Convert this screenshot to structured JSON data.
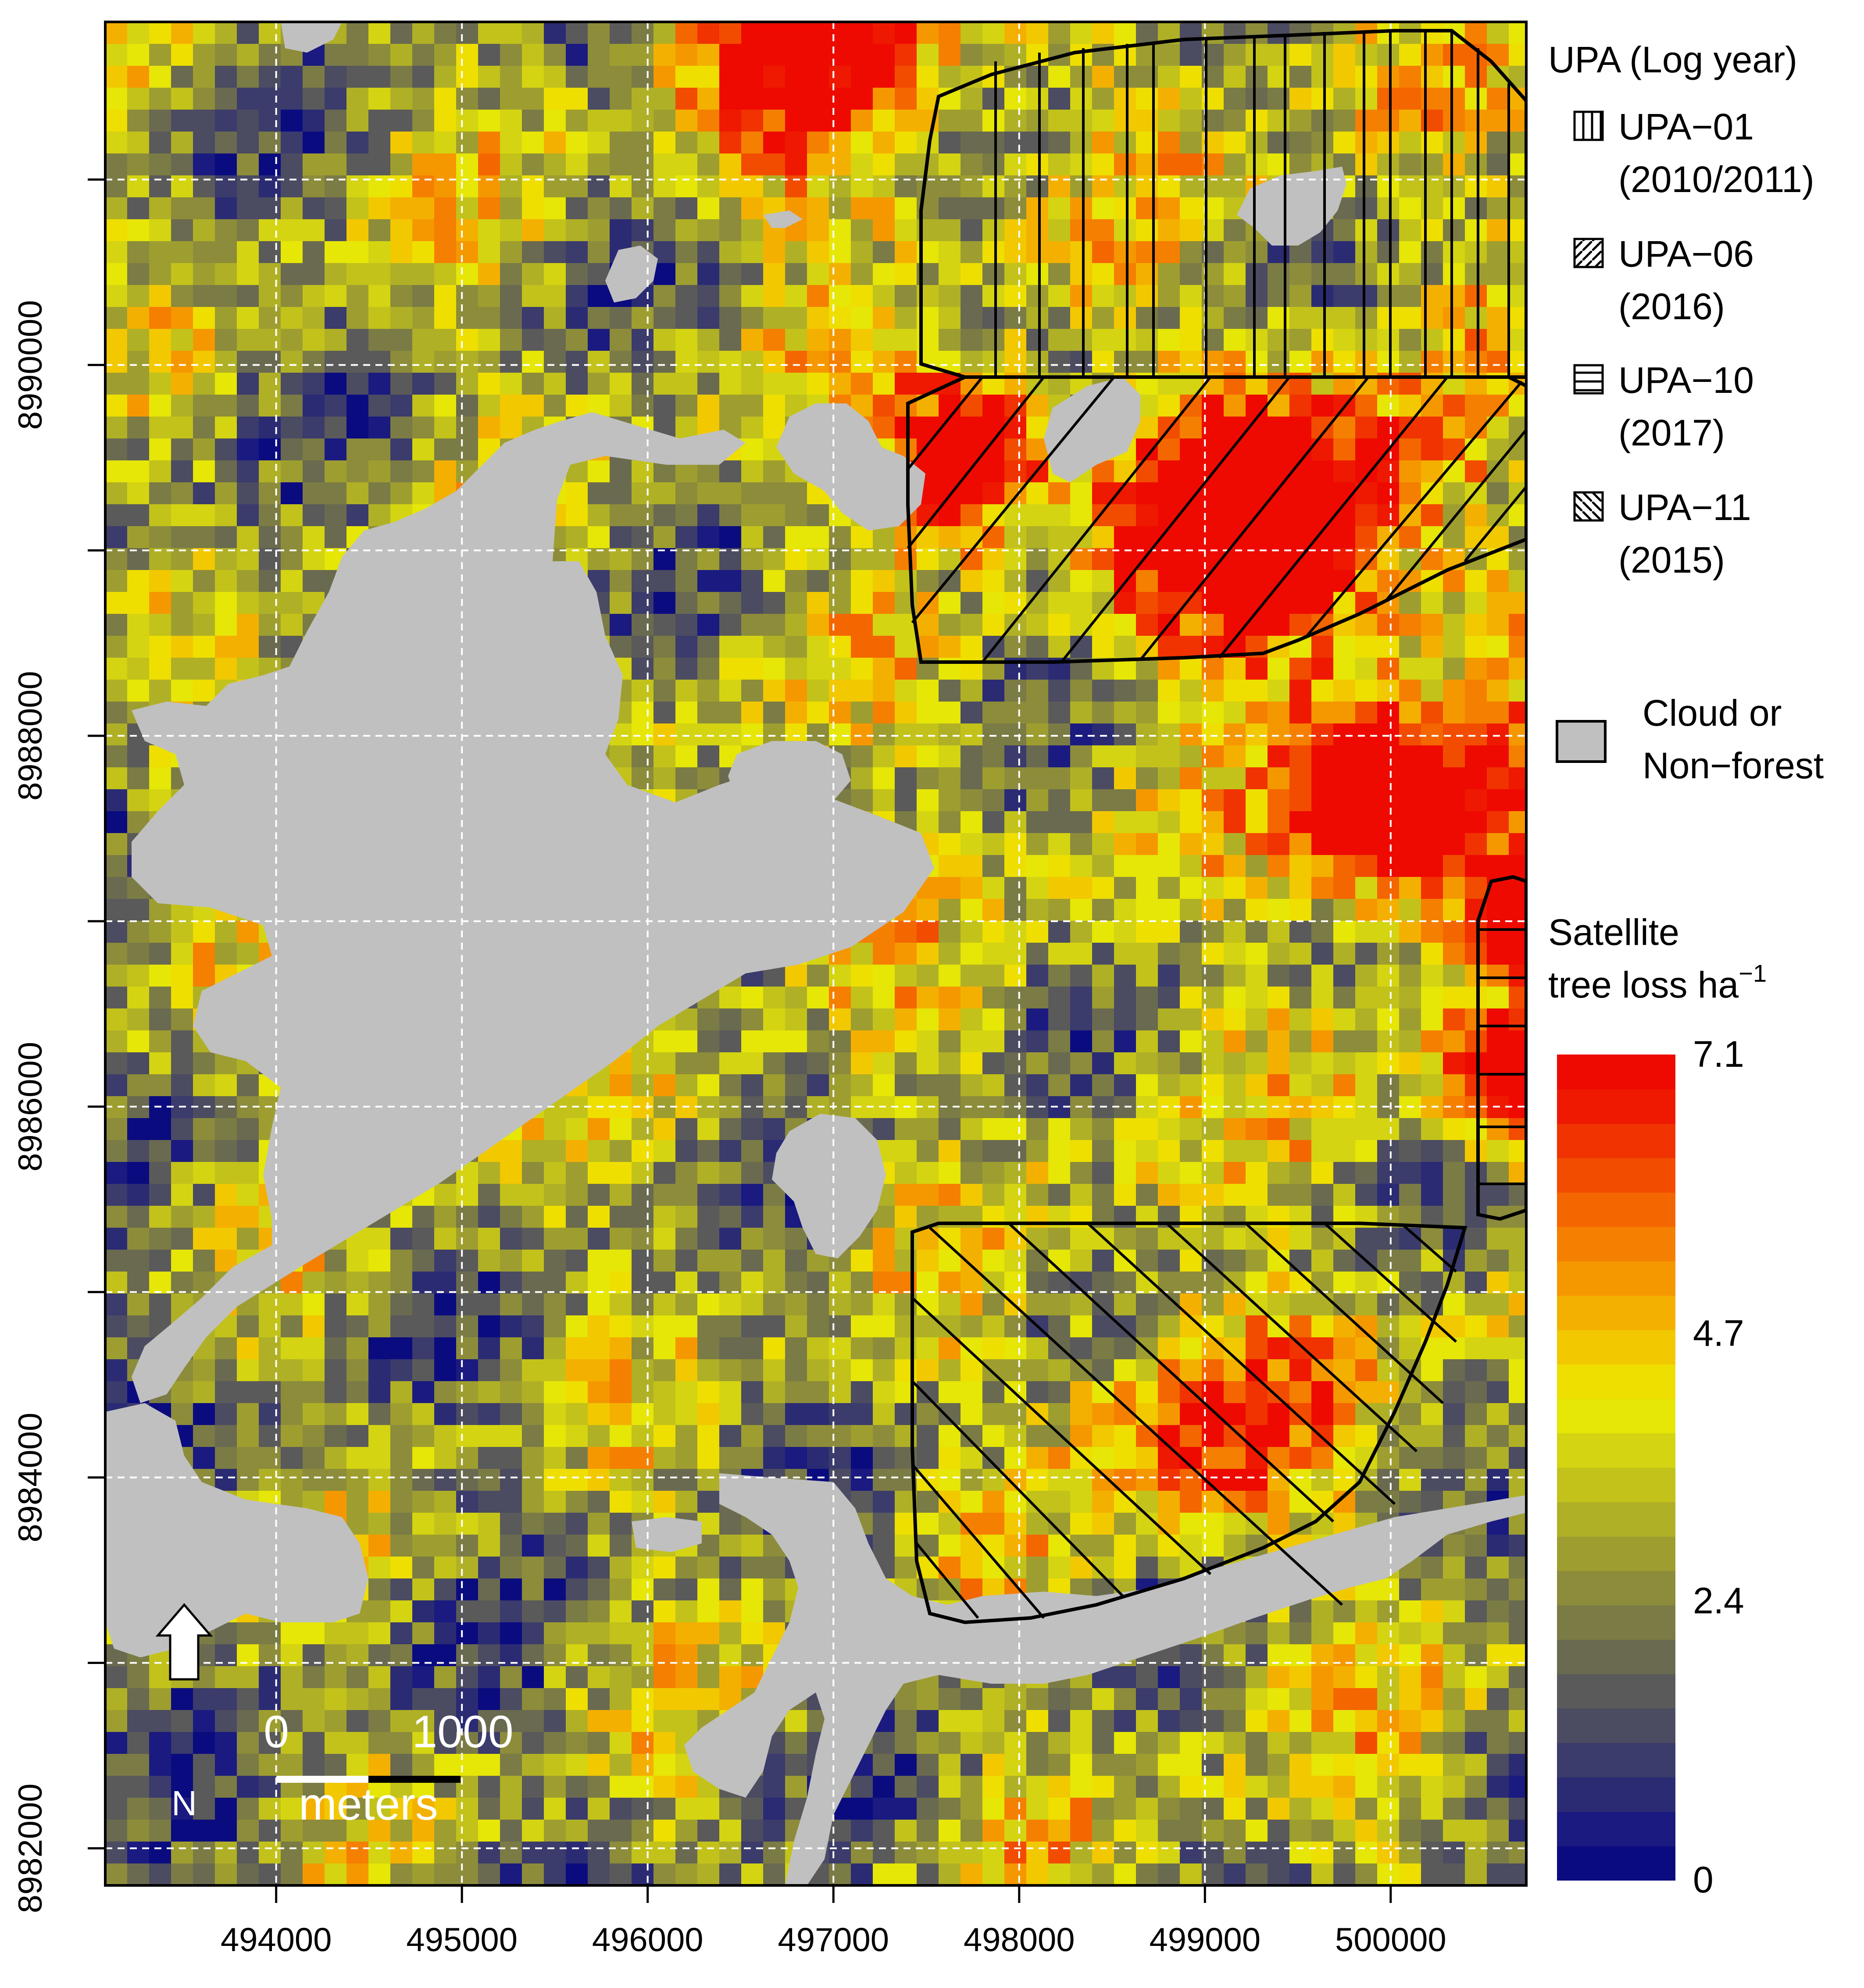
{
  "x_axis": {
    "ticks": [
      "494000",
      "495000",
      "496000",
      "497000",
      "498000",
      "499000",
      "500000"
    ],
    "range": [
      493080,
      500730
    ]
  },
  "y_axis": {
    "ticks": [
      "8982000",
      "8984000",
      "8986000",
      "8988000",
      "8990000"
    ],
    "range": [
      8981800,
      8991850
    ],
    "minor_ticks": [
      8982000,
      8983000,
      8984000,
      8985000,
      8986000,
      8987000,
      8988000,
      8989000,
      8990000,
      8991000
    ]
  },
  "legend": {
    "upa_title": "UPA (Log year)",
    "upa_items": [
      {
        "name": "UPA−01",
        "year": "(2010/2011)",
        "hatch": "vertical"
      },
      {
        "name": "UPA−06",
        "year": "(2016)",
        "hatch": "diagonal-up"
      },
      {
        "name": "UPA−10",
        "year": "(2017)",
        "hatch": "horizontal"
      },
      {
        "name": "UPA−11",
        "year": "(2015)",
        "hatch": "diagonal-down"
      }
    ],
    "cloud_label_1": "Cloud or",
    "cloud_label_2": "Non−forest",
    "cloud_color": "#c0c0c0",
    "colorbar_title_1": "Satellite",
    "colorbar_title_2": "tree loss ha",
    "colorbar_title_sup": "−1",
    "colorbar_ticks": [
      {
        "label": "7.1",
        "value": 7.1
      },
      {
        "label": "4.7",
        "value": 4.7
      },
      {
        "label": "2.4",
        "value": 2.4
      },
      {
        "label": "0",
        "value": 0
      }
    ],
    "colorbar_range": [
      0,
      7.1
    ],
    "colorbar_colors": [
      "#0b0b80",
      "#1a1a80",
      "#2b2b74",
      "#3b3b6c",
      "#4b4b62",
      "#5a5a5a",
      "#6a6a50",
      "#7b7b45",
      "#8c8c3b",
      "#9e9e30",
      "#b0b026",
      "#c2c21b",
      "#d4d412",
      "#e6e607",
      "#eedf00",
      "#f2c800",
      "#f4b000",
      "#f59800",
      "#f57f00",
      "#f46600",
      "#f24c00",
      "#f03300",
      "#ee1900",
      "#ee0a00"
    ]
  },
  "north_arrow": {
    "label": "N"
  },
  "scale_bar": {
    "label_start": "0",
    "label_end": "1000",
    "unit": "meters",
    "length_m": 1000
  },
  "colors": {
    "upa_outline": "#000000",
    "grid": "#ffffff",
    "low": "#0b0b80",
    "mid": "#8c8c3b",
    "high": "#ee0a00"
  }
}
